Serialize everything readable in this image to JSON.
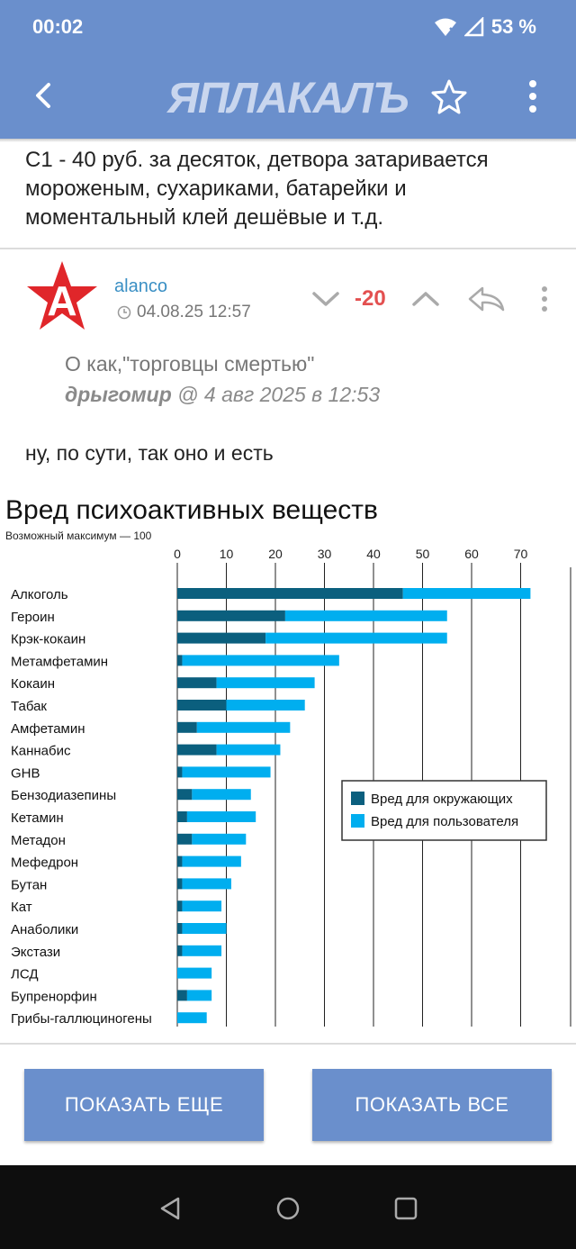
{
  "status": {
    "time": "00:02",
    "battery": "53 %"
  },
  "app": {
    "logo": "ЯПЛАКАЛЪ"
  },
  "prev_comment": {
    "text": "С1 - 40 руб. за десяток, детвора затаривается мороженым, сухариками, батарейки и моментальный клей дешёвые и т.д."
  },
  "comment": {
    "author": "alanco",
    "date": "04.08.25 12:57",
    "score": "-20",
    "quote_text": "О как,\"торговцы смертью\"",
    "quote_author": "дрыгомир",
    "quote_meta": " @ 4 авг 2025 в 12:53",
    "body": "ну, по сути, так оно и есть"
  },
  "chart_data": {
    "type": "bar",
    "title": "Вред психоактивных веществ",
    "subtitle": "Возможный максимум — 100",
    "xlim": [
      0,
      75
    ],
    "ticks": [
      0,
      10,
      20,
      30,
      40,
      50,
      60,
      70
    ],
    "categories": [
      "Алкоголь",
      "Героин",
      "Крэк-кокаин",
      "Метамфетамин",
      "Кокаин",
      "Табак",
      "Амфетамин",
      "Каннабис",
      "GHB",
      "Бензодиазепины",
      "Кетамин",
      "Метадон",
      "Мефедрон",
      "Бутан",
      "Кат",
      "Анаболики",
      "Экстази",
      "ЛСД",
      "Бупренорфин",
      "Грибы-галлюциногены"
    ],
    "series": [
      {
        "name": "Вред для окружающих",
        "color": "#0b5f7e",
        "values": [
          46,
          22,
          18,
          1,
          8,
          10,
          4,
          8,
          1,
          3,
          2,
          3,
          1,
          1,
          1,
          1,
          1,
          0,
          2,
          0
        ]
      },
      {
        "name": "Вред для пользователя",
        "color": "#00aeef",
        "values": [
          26,
          33,
          37,
          32,
          20,
          16,
          19,
          13,
          18,
          12,
          14,
          11,
          12,
          10,
          8,
          9,
          8,
          7,
          5,
          6
        ]
      }
    ],
    "legend": "right",
    "grid": true
  },
  "buttons": {
    "show_more": "ПОКАЗАТЬ ЕЩЕ",
    "show_all": "ПОКАЗАТЬ ВСЕ"
  }
}
